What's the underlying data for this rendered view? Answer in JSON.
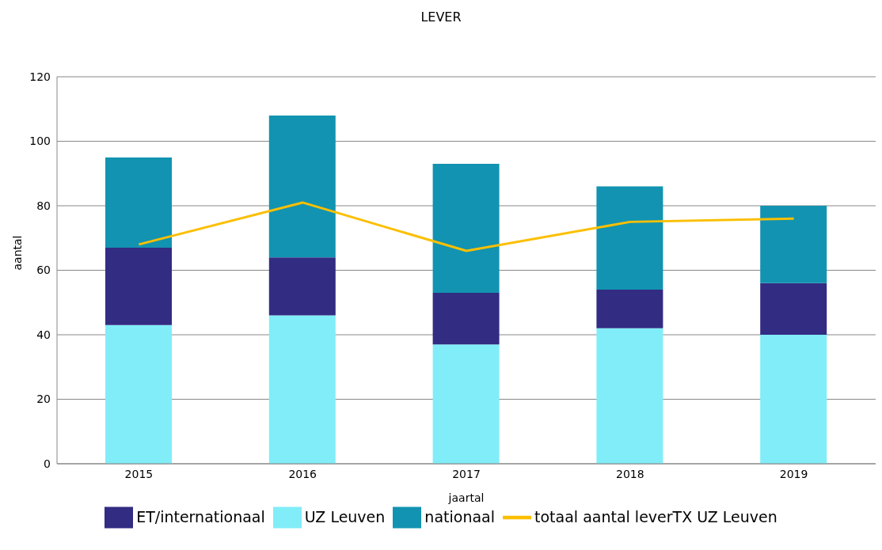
{
  "chart_data": {
    "type": "bar",
    "title": "LEVER",
    "xlabel": "jaartal",
    "ylabel": "aantal",
    "categories": [
      "2015",
      "2016",
      "2017",
      "2018",
      "2019"
    ],
    "stacked": true,
    "series": [
      {
        "name": "UZ Leuven",
        "color": "#81edf8",
        "values": [
          43,
          46,
          37,
          42,
          40
        ]
      },
      {
        "name": "ET/internationaal",
        "color": "#322c83",
        "values": [
          24,
          18,
          16,
          12,
          16
        ]
      },
      {
        "name": "nationaal",
        "color": "#1293b1",
        "values": [
          28,
          44,
          40,
          32,
          24
        ]
      },
      {
        "name": "totaal aantal leverTX UZ Leuven",
        "type": "line",
        "color": "#fbbf00",
        "values": [
          68,
          81,
          66,
          75,
          76
        ]
      }
    ],
    "ylim": [
      0,
      120
    ],
    "yticks": [
      0,
      20,
      40,
      60,
      80,
      100,
      120
    ],
    "grid": "y",
    "legend": "bottom",
    "marker": "none"
  }
}
